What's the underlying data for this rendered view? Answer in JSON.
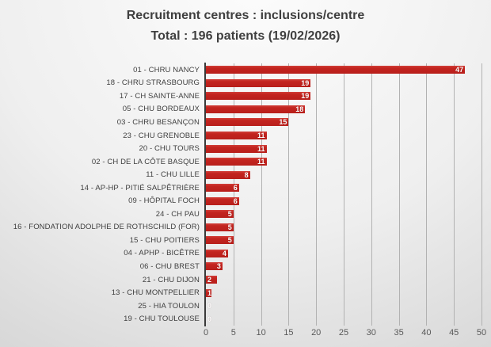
{
  "title": {
    "line1": "Recruitment centres : inclusions/centre",
    "line2": "Total : 196 patients (19/02/2026)"
  },
  "chart_data": {
    "type": "bar",
    "orientation": "horizontal",
    "title": "Recruitment centres : inclusions/centre — Total : 196 patients (19/02/2026)",
    "categories": [
      "01 - CHRU NANCY",
      "18 - CHRU STRASBOURG",
      "17 - CH SAINTE-ANNE",
      "05 - CHU BORDEAUX",
      "03 - CHRU BESANÇON",
      "23 - CHU GRENOBLE",
      "20 - CHU TOURS",
      "02 - CH DE LA CÔTE BASQUE",
      "11 - CHU LILLE",
      "14 - AP-HP - PITIÉ SALPÊTRIÈRE",
      "09 - HÔPITAL FOCH",
      "24 - CH PAU",
      "16 - FONDATION ADOLPHE DE ROTHSCHILD (FOR)",
      "15 - CHU POITIERS",
      "04 - APHP - BICÊTRE",
      "06 - CHU BREST",
      "21 - CHU DIJON",
      "13 - CHU MONTPELLIER",
      "25 - HIA TOULON",
      "19 - CHU TOULOUSE"
    ],
    "values": [
      47,
      19,
      19,
      18,
      15,
      11,
      11,
      11,
      8,
      6,
      6,
      5,
      5,
      5,
      4,
      3,
      2,
      1,
      0,
      0
    ],
    "total_patients": 196,
    "date": "19/02/2026",
    "xlabel": "",
    "ylabel": "",
    "xlim": [
      0,
      50
    ],
    "xticks": [
      0,
      5,
      10,
      15,
      20,
      25,
      30,
      35,
      40,
      45,
      50
    ],
    "grid": true,
    "legend": "none",
    "data_labels_position": "inside-end",
    "colors": {
      "bar": "#c3241f",
      "title_text": "#3f3f3f",
      "category_text": "#3f3f3f",
      "tick_text": "#595959",
      "gridline": "#b2b2b2",
      "axis_line": "#3a3a3a",
      "value_label": "#ffffff"
    }
  }
}
